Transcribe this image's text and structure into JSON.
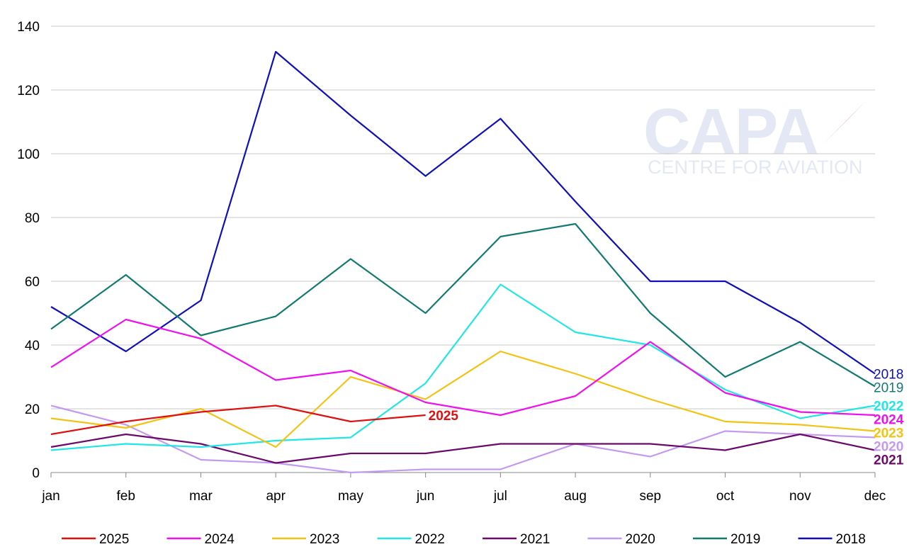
{
  "watermark": {
    "brand": "CAPA",
    "tagline": "CENTRE FOR AVIATION"
  },
  "chart_data": {
    "type": "line",
    "title": "",
    "xlabel": "",
    "ylabel": "",
    "categories": [
      "jan",
      "feb",
      "mar",
      "apr",
      "may",
      "jun",
      "jul",
      "aug",
      "sep",
      "oct",
      "nov",
      "dec"
    ],
    "ylim": [
      0,
      140
    ],
    "yticks": [
      "0",
      "20",
      "40",
      "60",
      "80",
      "100",
      "120",
      "140"
    ],
    "grid": "horizontal",
    "legend_position": "bottom",
    "series": [
      {
        "name": "2025",
        "color": "#dd1111",
        "end_label": "2025",
        "end_label_bold": true,
        "values": [
          12,
          16,
          19,
          21,
          16,
          18,
          null,
          null,
          null,
          null,
          null,
          null
        ]
      },
      {
        "name": "2024",
        "color": "#ee11ee",
        "end_label": "2024",
        "end_label_bold": true,
        "values": [
          33,
          48,
          42,
          29,
          32,
          22,
          18,
          24,
          41,
          25,
          19,
          18
        ]
      },
      {
        "name": "2023",
        "color": "#f2c314",
        "end_label": "2023",
        "end_label_bold": true,
        "values": [
          17,
          14,
          20,
          8,
          30,
          23,
          38,
          31,
          23,
          16,
          15,
          13
        ]
      },
      {
        "name": "2022",
        "color": "#22e5e5",
        "end_label": "2022",
        "end_label_bold": true,
        "values": [
          7,
          9,
          8,
          10,
          11,
          28,
          59,
          44,
          40,
          26,
          17,
          21
        ]
      },
      {
        "name": "2021",
        "color": "#6a0a6a",
        "end_label": "2021",
        "end_label_bold": true,
        "values": [
          8,
          12,
          9,
          3,
          6,
          6,
          9,
          9,
          9,
          7,
          12,
          7
        ]
      },
      {
        "name": "2020",
        "color": "#c49af0",
        "end_label": "2020",
        "end_label_bold": true,
        "values": [
          21,
          15,
          4,
          3,
          0,
          1,
          1,
          9,
          5,
          13,
          12,
          11
        ]
      },
      {
        "name": "2019",
        "color": "#137a72",
        "end_label": "2019",
        "end_label_bold": false,
        "values": [
          45,
          62,
          43,
          49,
          67,
          50,
          74,
          78,
          50,
          30,
          41,
          27
        ]
      },
      {
        "name": "2018",
        "color": "#1010bb",
        "end_label": "2018",
        "end_label_bold": false,
        "values": [
          52,
          38,
          54,
          132,
          112,
          93,
          111,
          85,
          60,
          60,
          47,
          31
        ]
      }
    ]
  }
}
